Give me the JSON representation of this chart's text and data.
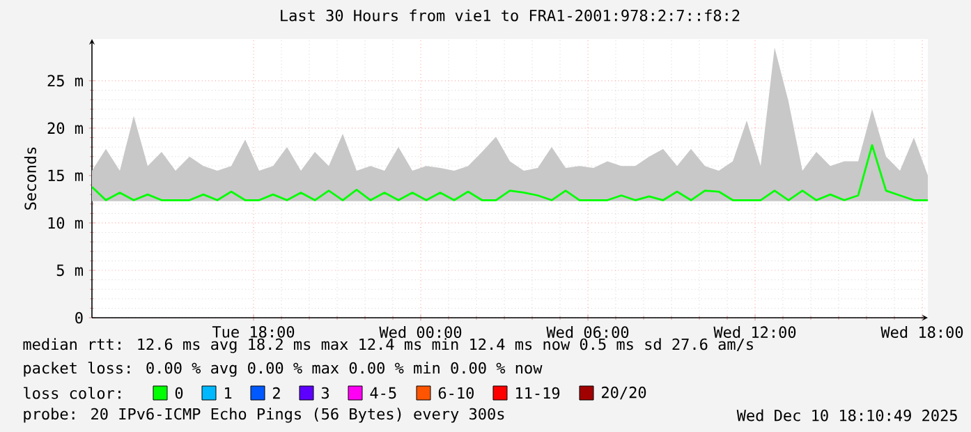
{
  "chart_data": {
    "type": "line",
    "title": "Last 30 Hours from vie1 to FRA1-2001:978:2:7::f8:2",
    "ylabel": "Seconds",
    "legend_title": "loss color:",
    "legend": "bottom",
    "grid": true,
    "xlim": [
      "2025-12-09T12:12",
      "2025-12-10T18:12"
    ],
    "xticks": [
      {
        "value": "2025-12-09T18:00",
        "label": "Tue 18:00"
      },
      {
        "value": "2025-12-10T00:00",
        "label": "Wed 00:00"
      },
      {
        "value": "2025-12-10T06:00",
        "label": "Wed 06:00"
      },
      {
        "value": "2025-12-10T12:00",
        "label": "Wed 12:00"
      },
      {
        "value": "2025-12-10T18:00",
        "label": "Wed 18:00"
      }
    ],
    "ylim": [
      0,
      29.4
    ],
    "yticks": [
      0,
      {
        "value": 5,
        "label": "5 m"
      },
      {
        "value": 10,
        "label": "10 m"
      },
      {
        "value": 15,
        "label": "15 m"
      },
      {
        "value": 20,
        "label": "20 m"
      },
      {
        "value": 25,
        "label": "25 m"
      }
    ],
    "x": [
      "2025-12-09T12:12",
      "2025-12-09T12:42",
      "2025-12-09T13:12",
      "2025-12-09T13:42",
      "2025-12-09T14:12",
      "2025-12-09T14:42",
      "2025-12-09T15:12",
      "2025-12-09T15:42",
      "2025-12-09T16:12",
      "2025-12-09T16:42",
      "2025-12-09T17:12",
      "2025-12-09T17:42",
      "2025-12-09T18:12",
      "2025-12-09T18:42",
      "2025-12-09T19:12",
      "2025-12-09T19:42",
      "2025-12-09T20:12",
      "2025-12-09T20:42",
      "2025-12-09T21:12",
      "2025-12-09T21:42",
      "2025-12-09T22:12",
      "2025-12-09T22:42",
      "2025-12-09T23:12",
      "2025-12-09T23:42",
      "2025-12-10T00:12",
      "2025-12-10T00:42",
      "2025-12-10T01:12",
      "2025-12-10T01:42",
      "2025-12-10T02:12",
      "2025-12-10T02:42",
      "2025-12-10T03:12",
      "2025-12-10T03:42",
      "2025-12-10T04:12",
      "2025-12-10T04:42",
      "2025-12-10T05:12",
      "2025-12-10T05:42",
      "2025-12-10T06:12",
      "2025-12-10T06:42",
      "2025-12-10T07:12",
      "2025-12-10T07:42",
      "2025-12-10T08:12",
      "2025-12-10T08:42",
      "2025-12-10T09:12",
      "2025-12-10T09:42",
      "2025-12-10T10:12",
      "2025-12-10T10:42",
      "2025-12-10T11:12",
      "2025-12-10T11:42",
      "2025-12-10T12:12",
      "2025-12-10T12:42",
      "2025-12-10T13:12",
      "2025-12-10T13:42",
      "2025-12-10T14:12",
      "2025-12-10T14:42",
      "2025-12-10T15:12",
      "2025-12-10T15:42",
      "2025-12-10T16:12",
      "2025-12-10T16:42",
      "2025-12-10T17:12",
      "2025-12-10T17:42",
      "2025-12-10T18:12"
    ],
    "series": [
      {
        "name": "0",
        "color": "#00ff00",
        "values": [
          13.8,
          12.4,
          13.2,
          12.4,
          13,
          12.4,
          12.4,
          12.4,
          13,
          12.4,
          13.3,
          12.4,
          12.4,
          13,
          12.4,
          13.2,
          12.4,
          13.4,
          12.4,
          13.5,
          12.4,
          13.2,
          12.4,
          13.2,
          12.4,
          13.2,
          12.4,
          13.3,
          12.4,
          12.4,
          13.4,
          13.2,
          12.9,
          12.4,
          13.4,
          12.4,
          12.4,
          12.4,
          12.9,
          12.4,
          12.8,
          12.4,
          13.3,
          12.4,
          13.4,
          13.3,
          12.4,
          12.4,
          12.4,
          13.4,
          12.4,
          13.4,
          12.4,
          13,
          12.4,
          12.9,
          18.2,
          13.4,
          12.9,
          12.4,
          12.4
        ],
        "lower": [
          12.3,
          12.3,
          12.3,
          12.3,
          12.3,
          12.3,
          12.3,
          12.3,
          12.3,
          12.3,
          12.3,
          12.3,
          12.3,
          12.3,
          12.3,
          12.3,
          12.3,
          12.3,
          12.3,
          12.3,
          12.3,
          12.3,
          12.3,
          12.3,
          12.3,
          12.3,
          12.3,
          12.3,
          12.3,
          12.3,
          12.3,
          12.3,
          12.3,
          12.3,
          12.3,
          12.3,
          12.3,
          12.3,
          12.3,
          12.3,
          12.3,
          12.3,
          12.3,
          12.3,
          12.3,
          12.3,
          12.3,
          12.3,
          12.3,
          12.3,
          12.3,
          12.3,
          12.3,
          12.3,
          12.3,
          12.3,
          12.3,
          12.3,
          12.3,
          12.3,
          12.3
        ],
        "upper": [
          15.5,
          17.8,
          15.5,
          21.3,
          16,
          17.5,
          15.5,
          17,
          16,
          15.5,
          16,
          18.8,
          15.5,
          16,
          18,
          15.5,
          17.5,
          16,
          19.4,
          15.5,
          16,
          15.5,
          18,
          15.5,
          16,
          15.8,
          15.5,
          16,
          17.5,
          19.1,
          16.5,
          15.5,
          15.8,
          18,
          15.8,
          16,
          15.8,
          16.5,
          16,
          16,
          17,
          17.8,
          16,
          17.8,
          16,
          15.5,
          16.5,
          20.8,
          16,
          28.5,
          22.8,
          15.5,
          17.5,
          16,
          16.5,
          16.5,
          22,
          17,
          15.5,
          19,
          15
        ]
      },
      {
        "name": "1",
        "color": "#00b8ff",
        "values": [
          null,
          null,
          null,
          null,
          null,
          null,
          null,
          null,
          null,
          null,
          null,
          null,
          null,
          null,
          null,
          null,
          null,
          null,
          null,
          null,
          null,
          null,
          null,
          null,
          null,
          null,
          null,
          null,
          null,
          null,
          null,
          null,
          null,
          null,
          null,
          null,
          null,
          null,
          null,
          null,
          null,
          null,
          null,
          null,
          null,
          null,
          null,
          null,
          null,
          null,
          null,
          null,
          null,
          null,
          null,
          null,
          null,
          null,
          null,
          null,
          null
        ]
      },
      {
        "name": "2",
        "color": "#0059ff",
        "values": [
          null,
          null,
          null,
          null,
          null,
          null,
          null,
          null,
          null,
          null,
          null,
          null,
          null,
          null,
          null,
          null,
          null,
          null,
          null,
          null,
          null,
          null,
          null,
          null,
          null,
          null,
          null,
          null,
          null,
          null,
          null,
          null,
          null,
          null,
          null,
          null,
          null,
          null,
          null,
          null,
          null,
          null,
          null,
          null,
          null,
          null,
          null,
          null,
          null,
          null,
          null,
          null,
          null,
          null,
          null,
          null,
          null,
          null,
          null,
          null,
          null
        ]
      },
      {
        "name": "3",
        "color": "#5e00ff",
        "values": [
          null,
          null,
          null,
          null,
          null,
          null,
          null,
          null,
          null,
          null,
          null,
          null,
          null,
          null,
          null,
          null,
          null,
          null,
          null,
          null,
          null,
          null,
          null,
          null,
          null,
          null,
          null,
          null,
          null,
          null,
          null,
          null,
          null,
          null,
          null,
          null,
          null,
          null,
          null,
          null,
          null,
          null,
          null,
          null,
          null,
          null,
          null,
          null,
          null,
          null,
          null,
          null,
          null,
          null,
          null,
          null,
          null,
          null,
          null,
          null,
          null
        ]
      },
      {
        "name": "4-5",
        "color": "#ff00f4",
        "values": [
          null,
          null,
          null,
          null,
          null,
          null,
          null,
          null,
          null,
          null,
          null,
          null,
          null,
          null,
          null,
          null,
          null,
          null,
          null,
          null,
          null,
          null,
          null,
          null,
          null,
          null,
          null,
          null,
          null,
          null,
          null,
          null,
          null,
          null,
          null,
          null,
          null,
          null,
          null,
          null,
          null,
          null,
          null,
          null,
          null,
          null,
          null,
          null,
          null,
          null,
          null,
          null,
          null,
          null,
          null,
          null,
          null,
          null,
          null,
          null,
          null
        ]
      },
      {
        "name": "6-10",
        "color": "#ff5500",
        "values": [
          null,
          null,
          null,
          null,
          null,
          null,
          null,
          null,
          null,
          null,
          null,
          null,
          null,
          null,
          null,
          null,
          null,
          null,
          null,
          null,
          null,
          null,
          null,
          null,
          null,
          null,
          null,
          null,
          null,
          null,
          null,
          null,
          null,
          null,
          null,
          null,
          null,
          null,
          null,
          null,
          null,
          null,
          null,
          null,
          null,
          null,
          null,
          null,
          null,
          null,
          null,
          null,
          null,
          null,
          null,
          null,
          null,
          null,
          null,
          null,
          null
        ]
      },
      {
        "name": "11-19",
        "color": "#ff0000",
        "values": [
          null,
          null,
          null,
          null,
          null,
          null,
          null,
          null,
          null,
          null,
          null,
          null,
          null,
          null,
          null,
          null,
          null,
          null,
          null,
          null,
          null,
          null,
          null,
          null,
          null,
          null,
          null,
          null,
          null,
          null,
          null,
          null,
          null,
          null,
          null,
          null,
          null,
          null,
          null,
          null,
          null,
          null,
          null,
          null,
          null,
          null,
          null,
          null,
          null,
          null,
          null,
          null,
          null,
          null,
          null,
          null,
          null,
          null,
          null,
          null,
          null
        ]
      },
      {
        "name": "20/20",
        "color": "#a10000",
        "values": [
          null,
          null,
          null,
          null,
          null,
          null,
          null,
          null,
          null,
          null,
          null,
          null,
          null,
          null,
          null,
          null,
          null,
          null,
          null,
          null,
          null,
          null,
          null,
          null,
          null,
          null,
          null,
          null,
          null,
          null,
          null,
          null,
          null,
          null,
          null,
          null,
          null,
          null,
          null,
          null,
          null,
          null,
          null,
          null,
          null,
          null,
          null,
          null,
          null,
          null,
          null,
          null,
          null,
          null,
          null,
          null,
          null,
          null,
          null,
          null,
          null
        ]
      }
    ],
    "annotations": [
      "median rtt:  12.6 ms avg  18.2 ms max  12.4 ms min  12.4 ms now  0.5 ms sd  27.6   am/s",
      "packet loss: 0.00 % avg  0.00 % max  0.00 % min  0.00 % now",
      "probe:       20 IPv6-ICMP Echo Pings (56 Bytes) every 300s",
      "Wed Dec 10 18:10:49 2025"
    ]
  }
}
